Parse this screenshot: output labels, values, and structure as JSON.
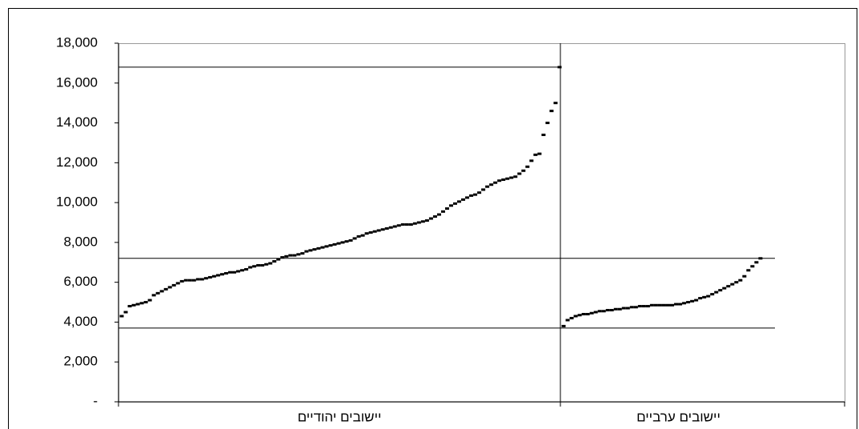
{
  "chart_data": {
    "type": "scatter",
    "categories": [
      "יישובים יהודיים",
      "יישובים ערביים"
    ],
    "series": [
      {
        "color": "#000000",
        "values": [
          4300,
          4500,
          4800,
          4850,
          4900,
          4950,
          5000,
          5100,
          5350,
          5450,
          5550,
          5650,
          5750,
          5850,
          5950,
          6050,
          6100,
          6100,
          6100,
          6150,
          6150,
          6200,
          6250,
          6300,
          6350,
          6400,
          6450,
          6500,
          6500,
          6550,
          6600,
          6650,
          6750,
          6800,
          6850,
          6850,
          6900,
          6950,
          7050,
          7150,
          7250,
          7300,
          7350,
          7350,
          7400,
          7450,
          7550,
          7600,
          7650,
          7700,
          7750,
          7800,
          7850,
          7900,
          7950,
          8000,
          8050,
          8100,
          8200,
          8300,
          8350,
          8450,
          8500,
          8550,
          8600,
          8650,
          8700,
          8750,
          8800,
          8850,
          8900,
          8900,
          8900,
          8950,
          9000,
          9050,
          9100,
          9200,
          9300,
          9400,
          9550,
          9700,
          9850,
          9950,
          10050,
          10150,
          10250,
          10350,
          10400,
          10500,
          10650,
          10800,
          10900,
          11000,
          11100,
          11150,
          11200,
          11250,
          11300,
          11450,
          11600,
          11800,
          12100,
          12400,
          12450,
          13400,
          14000,
          14600,
          15000,
          16800
        ]
      },
      {
        "color": "#000000",
        "values": [
          3800,
          4100,
          4200,
          4300,
          4350,
          4400,
          4400,
          4450,
          4500,
          4550,
          4550,
          4600,
          4600,
          4650,
          4650,
          4700,
          4700,
          4750,
          4750,
          4800,
          4800,
          4800,
          4850,
          4850,
          4850,
          4850,
          4850,
          4850,
          4900,
          4900,
          4950,
          5000,
          5050,
          5100,
          5200,
          5250,
          5300,
          5400,
          5500,
          5600,
          5700,
          5800,
          5900,
          6000,
          6100,
          6300,
          6600,
          6800,
          7000,
          7200
        ]
      }
    ],
    "reference_lines": [
      16800,
      7200,
      3700
    ],
    "ylim": [
      0,
      18000
    ],
    "yticks": [
      {
        "value": 0,
        "label": "-"
      },
      {
        "value": 2000,
        "label": "2,000"
      },
      {
        "value": 4000,
        "label": "4,000"
      },
      {
        "value": 6000,
        "label": "6,000"
      },
      {
        "value": 8000,
        "label": "8,000"
      },
      {
        "value": 10000,
        "label": "10,000"
      },
      {
        "value": 12000,
        "label": "12,000"
      },
      {
        "value": 14000,
        "label": "14,000"
      },
      {
        "value": 16000,
        "label": "16,000"
      },
      {
        "value": 18000,
        "label": "18,000"
      }
    ]
  }
}
